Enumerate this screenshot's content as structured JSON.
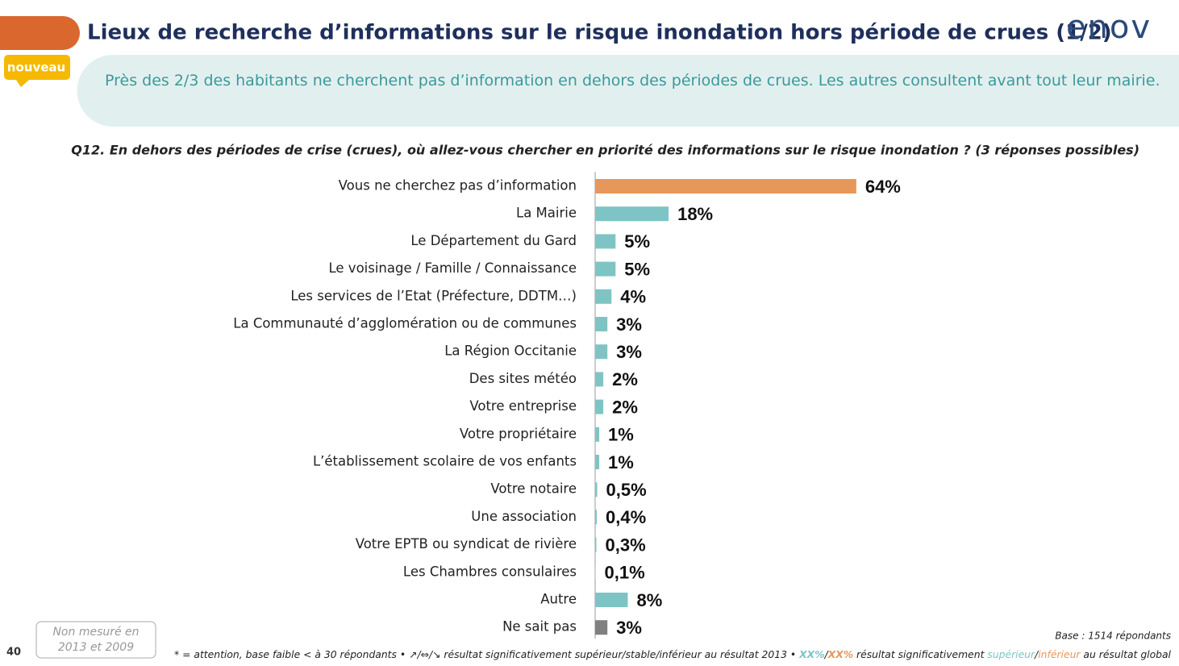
{
  "header": {
    "title": "Lieux de recherche d’informations sur le risque inondation hors période de crues (1/2)",
    "logo": "enov",
    "badge": "nouveau"
  },
  "summary": "Près des 2/3 des habitants ne cherchent pas d’information en dehors des périodes de crues. Les autres consultent avant tout leur mairie.",
  "chart_data": {
    "type": "bar",
    "orientation": "horizontal",
    "title": "Q12. En dehors des périodes de crise (crues), où allez-vous chercher en priorité des informations sur le risque inondation ? (3 réponses possibles)",
    "categories": [
      "Vous ne cherchez pas d’information",
      "La Mairie",
      "Le Département du Gard",
      "Le voisinage / Famille / Connaissance",
      "Les services de l’Etat (Préfecture, DDTM…)",
      "La Communauté d’agglomération ou de communes",
      "La Région Occitanie",
      "Des sites météo",
      "Votre entreprise",
      "Votre propriétaire",
      "L’établissement scolaire de vos enfants",
      "Votre notaire",
      "Une association",
      "Votre EPTB ou syndicat de rivière",
      "Les Chambres consulaires",
      "Autre",
      "Ne sait pas"
    ],
    "values": [
      64,
      18,
      5,
      5,
      4,
      3,
      3,
      2,
      2,
      1,
      1,
      0.5,
      0.4,
      0.3,
      0.1,
      8,
      3
    ],
    "value_labels": [
      "64%",
      "18%",
      "5%",
      "5%",
      "4%",
      "3%",
      "3%",
      "2%",
      "2%",
      "1%",
      "1%",
      "0,5%",
      "0,4%",
      "0,3%",
      "0,1%",
      "8%",
      "3%"
    ],
    "colors": [
      "#e8975a",
      "#7fc4c4",
      "#7fc4c4",
      "#7fc4c4",
      "#7fc4c4",
      "#7fc4c4",
      "#7fc4c4",
      "#7fc4c4",
      "#7fc4c4",
      "#7fc4c4",
      "#7fc4c4",
      "#7fc4c4",
      "#7fc4c4",
      "#7fc4c4",
      "#7fc4c4",
      "#7fc4c4",
      "#808080"
    ]
  },
  "footer": {
    "not_measured": [
      "Non mesuré en",
      "2013 et 2009"
    ],
    "page": "40",
    "base": "Base : 1514 répondants",
    "note": [
      "* = attention, base faible < à 30 répondants • ↗/⇔/↘ résultat significativement ",
      "supérieur/stable/inférieur",
      " au résultat 2013 • ",
      "XX%",
      "/",
      "XX%",
      " résultat significativement ",
      "supérieur",
      "/",
      "inférieur",
      " au résultat global"
    ]
  }
}
